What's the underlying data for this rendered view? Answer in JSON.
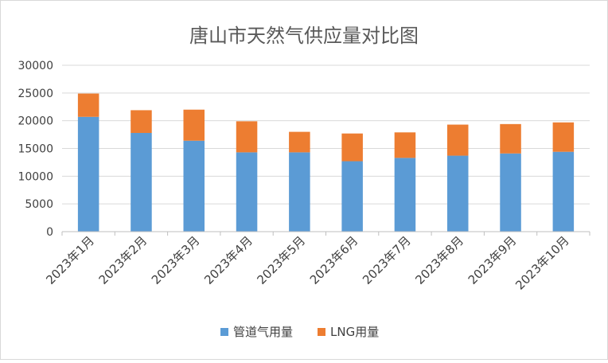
{
  "chart_data": {
    "type": "bar",
    "stacked": true,
    "title": "唐山市天然气供应量对比图",
    "xlabel": "",
    "ylabel": "",
    "ylim": [
      0,
      30000
    ],
    "yticks": [
      0,
      5000,
      10000,
      15000,
      20000,
      25000,
      30000
    ],
    "grid": true,
    "legend_position": "bottom",
    "categories": [
      "2023年1月",
      "2023年2月",
      "2023年3月",
      "2023年4月",
      "2023年5月",
      "2023年6月",
      "2023年7月",
      "2023年8月",
      "2023年9月",
      "2023年10月"
    ],
    "series": [
      {
        "name": "管道气用量",
        "color": "#5b9bd5",
        "values": [
          20700,
          17800,
          16400,
          14300,
          14300,
          12700,
          13300,
          13700,
          14100,
          14400
        ]
      },
      {
        "name": "LNG用量",
        "color": "#ed7d31",
        "values": [
          4200,
          4100,
          5600,
          5600,
          3700,
          5000,
          4600,
          5600,
          5300,
          5300
        ]
      }
    ]
  },
  "colors": {
    "grid": "#d9d9d9",
    "axis": "#bfbfbf",
    "text": "#404040",
    "title": "#595959"
  }
}
